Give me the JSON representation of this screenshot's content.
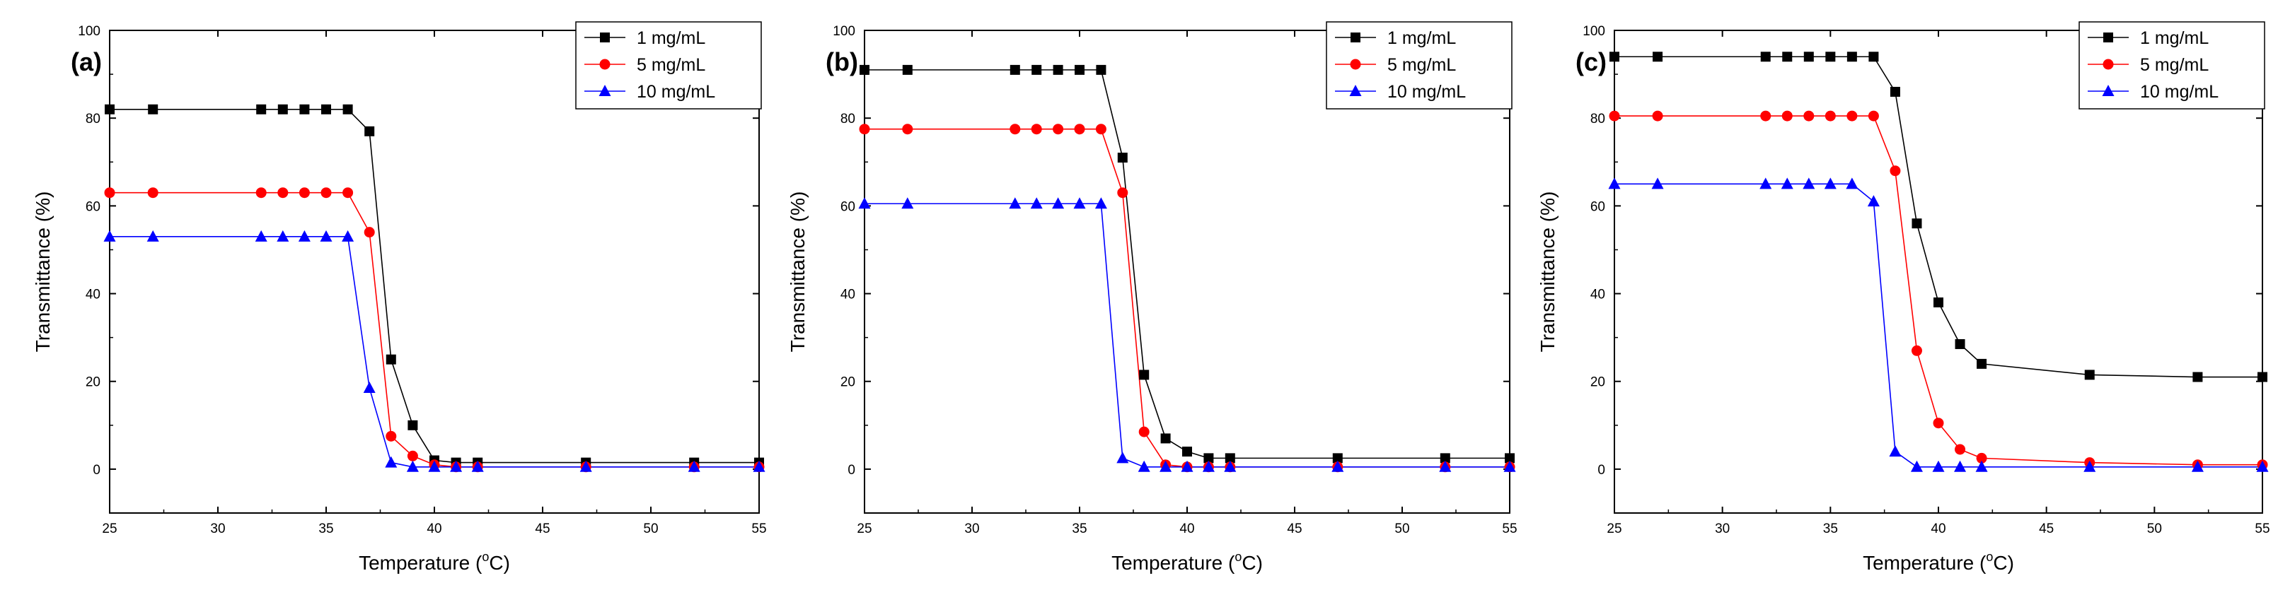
{
  "figure": {
    "panel_labels": [
      "(a)",
      "(b)",
      "(c)"
    ],
    "x_axis_title": "Temperature (",
    "x_axis_degree": "o",
    "x_axis_unit_suffix": "C)",
    "y_axis_title": "Transmittance (%)"
  },
  "legend_labels": [
    "1 mg/mL",
    "5 mg/mL",
    "10 mg/mL"
  ],
  "series_colors": [
    "#000000",
    "#ff0000",
    "#0000ff"
  ],
  "marker_shapes": [
    "square",
    "circle",
    "triangle"
  ],
  "chart_data": [
    {
      "type": "line",
      "panel": "(a)",
      "title": "",
      "xlabel": "Temperature (°C)",
      "ylabel": "Transmittance (%)",
      "xlim": [
        25,
        55
      ],
      "ylim": [
        -10,
        100
      ],
      "xticks": [
        25,
        30,
        35,
        40,
        45,
        50,
        55
      ],
      "yticks": [
        0,
        20,
        40,
        60,
        80,
        100
      ],
      "legend": "top-right",
      "grid": false,
      "x": [
        25,
        27,
        32,
        33,
        34,
        35,
        36,
        37,
        38,
        39,
        40,
        41,
        42,
        47,
        52,
        55
      ],
      "series": [
        {
          "name": "1 mg/mL",
          "color": "#000000",
          "marker": "square",
          "values": [
            82,
            82,
            82,
            82,
            82,
            82,
            82,
            77,
            25,
            10,
            2,
            1.5,
            1.5,
            1.5,
            1.5,
            1.5
          ]
        },
        {
          "name": "5 mg/mL",
          "color": "#ff0000",
          "marker": "circle",
          "values": [
            63,
            63,
            63,
            63,
            63,
            63,
            63,
            54,
            7.5,
            3,
            1,
            0.5,
            0.5,
            0.5,
            0.5,
            0.5
          ]
        },
        {
          "name": "10 mg/mL",
          "color": "#0000ff",
          "marker": "triangle",
          "values": [
            53,
            53,
            53,
            53,
            53,
            53,
            53,
            18.5,
            1.5,
            0.5,
            0.5,
            0.5,
            0.5,
            0.5,
            0.5,
            0.5
          ]
        }
      ]
    },
    {
      "type": "line",
      "panel": "(b)",
      "title": "",
      "xlabel": "Temperature (°C)",
      "ylabel": "Transmittance (%)",
      "xlim": [
        25,
        55
      ],
      "ylim": [
        -10,
        100
      ],
      "xticks": [
        25,
        30,
        35,
        40,
        45,
        50,
        55
      ],
      "yticks": [
        0,
        20,
        40,
        60,
        80,
        100
      ],
      "legend": "top-right",
      "grid": false,
      "x": [
        25,
        27,
        32,
        33,
        34,
        35,
        36,
        37,
        38,
        39,
        40,
        41,
        42,
        47,
        52,
        55
      ],
      "series": [
        {
          "name": "1 mg/mL",
          "color": "#000000",
          "marker": "square",
          "values": [
            91,
            91,
            91,
            91,
            91,
            91,
            91,
            71,
            21.5,
            7,
            4,
            2.5,
            2.5,
            2.5,
            2.5,
            2.5
          ]
        },
        {
          "name": "5 mg/mL",
          "color": "#ff0000",
          "marker": "circle",
          "values": [
            77.5,
            77.5,
            77.5,
            77.5,
            77.5,
            77.5,
            77.5,
            63,
            8.5,
            1,
            0.5,
            0.5,
            0.5,
            0.5,
            0.5,
            0.5
          ]
        },
        {
          "name": "10 mg/mL",
          "color": "#0000ff",
          "marker": "triangle",
          "values": [
            60.5,
            60.5,
            60.5,
            60.5,
            60.5,
            60.5,
            60.5,
            2.5,
            0.5,
            0.5,
            0.5,
            0.5,
            0.5,
            0.5,
            0.5,
            0.5
          ]
        }
      ]
    },
    {
      "type": "line",
      "panel": "(c)",
      "title": "",
      "xlabel": "Temperature (°C)",
      "ylabel": "Transmittance (%)",
      "xlim": [
        25,
        55
      ],
      "ylim": [
        -10,
        100
      ],
      "xticks": [
        25,
        30,
        35,
        40,
        45,
        50,
        55
      ],
      "yticks": [
        0,
        20,
        40,
        60,
        80,
        100
      ],
      "legend": "top-right",
      "grid": false,
      "x": [
        25,
        27,
        32,
        33,
        34,
        35,
        36,
        37,
        38,
        39,
        40,
        41,
        42,
        47,
        52,
        55
      ],
      "series": [
        {
          "name": "1 mg/mL",
          "color": "#000000",
          "marker": "square",
          "values": [
            94,
            94,
            94,
            94,
            94,
            94,
            94,
            94,
            86,
            56,
            38,
            28.5,
            24,
            21.5,
            21,
            21
          ]
        },
        {
          "name": "5 mg/mL",
          "color": "#ff0000",
          "marker": "circle",
          "values": [
            80.5,
            80.5,
            80.5,
            80.5,
            80.5,
            80.5,
            80.5,
            80.5,
            68,
            27,
            10.5,
            4.5,
            2.5,
            1.5,
            1,
            1
          ]
        },
        {
          "name": "10 mg/mL",
          "color": "#0000ff",
          "marker": "triangle",
          "values": [
            65,
            65,
            65,
            65,
            65,
            65,
            65,
            61,
            4,
            0.5,
            0.5,
            0.5,
            0.5,
            0.5,
            0.5,
            0.5
          ]
        }
      ]
    }
  ]
}
